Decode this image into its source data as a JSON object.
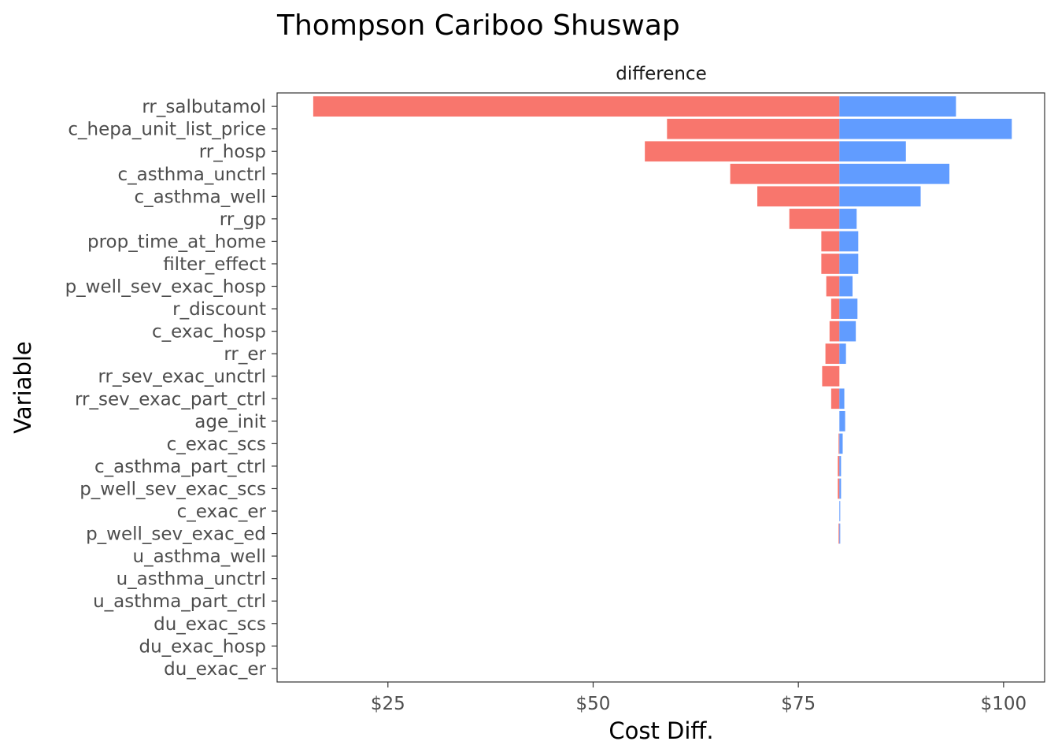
{
  "chart_data": {
    "type": "bar",
    "orientation": "horizontal",
    "subtype": "tornado",
    "title": "Thompson Cariboo Shuswap",
    "facet_label": "difference",
    "xlabel": "Cost Diff.",
    "ylabel": "Variable",
    "xlim": [
      11.5,
      105
    ],
    "baseline": 80,
    "x_ticks": [
      25,
      50,
      75,
      100
    ],
    "x_tick_labels": [
      "$25",
      "$50",
      "$75",
      "$100"
    ],
    "grid": false,
    "colors": {
      "low": "#F8766D",
      "high": "#619CFF"
    },
    "categories": [
      "rr_salbutamol",
      "c_hepa_unit_list_price",
      "rr_hosp",
      "c_asthma_unctrl",
      "c_asthma_well",
      "rr_gp",
      "prop_time_at_home",
      "filter_effect",
      "p_well_sev_exac_hosp",
      "r_discount",
      "c_exac_hosp",
      "rr_er",
      "rr_sev_exac_unctrl",
      "rr_sev_exac_part_ctrl",
      "age_init",
      "c_exac_scs",
      "c_asthma_part_ctrl",
      "p_well_sev_exac_scs",
      "c_exac_er",
      "p_well_sev_exac_ed",
      "u_asthma_well",
      "u_asthma_unctrl",
      "u_asthma_part_ctrl",
      "du_exac_scs",
      "du_exac_hosp",
      "du_exac_er"
    ],
    "low_values": [
      15.9,
      59.0,
      56.3,
      66.7,
      70.0,
      73.9,
      77.8,
      77.8,
      78.4,
      79.0,
      78.8,
      78.3,
      77.9,
      79.0,
      80.0,
      79.9,
      79.8,
      79.8,
      80.0,
      79.9,
      80,
      80,
      80,
      80,
      80,
      80
    ],
    "high_values": [
      94.2,
      101.0,
      88.1,
      93.4,
      89.9,
      82.1,
      82.3,
      82.3,
      81.6,
      82.2,
      82.0,
      80.8,
      80.0,
      80.6,
      80.7,
      80.4,
      80.2,
      80.2,
      80.1,
      80.1,
      80,
      80,
      80,
      80,
      80,
      80
    ]
  }
}
